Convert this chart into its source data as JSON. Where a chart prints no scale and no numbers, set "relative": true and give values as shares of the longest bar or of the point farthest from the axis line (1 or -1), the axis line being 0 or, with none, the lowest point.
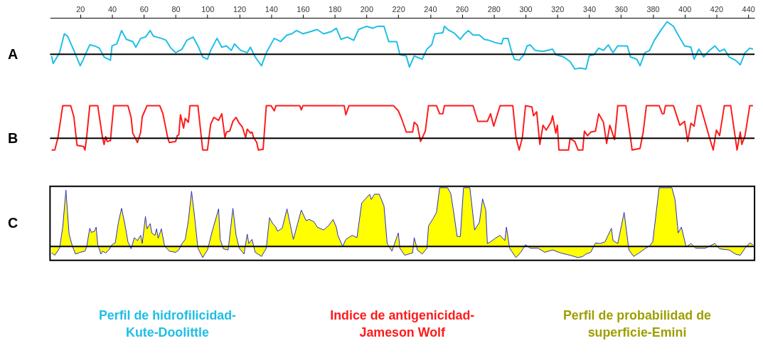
{
  "chart_data": [
    {
      "type": "line",
      "title": "A",
      "relative": true,
      "tick_labels": "x",
      "xlim": [
        1,
        444
      ],
      "xticks": [
        20,
        40,
        60,
        80,
        100,
        120,
        140,
        160,
        180,
        200,
        220,
        240,
        260,
        280,
        300,
        320,
        340,
        360,
        380,
        400,
        420,
        440
      ],
      "annotations": [
        "Perfil de hidrofilicidad-\nKute-Doolittle"
      ],
      "series": [
        {
          "color": "#1ebfe6",
          "x": [
            2,
            3,
            7,
            10,
            12,
            16,
            20,
            22,
            25,
            26,
            29,
            32,
            35,
            39,
            40,
            43,
            46,
            49,
            53,
            55,
            58,
            61,
            64,
            66,
            71,
            74,
            77,
            80,
            84,
            87,
            91,
            94,
            97,
            100,
            102,
            106,
            109,
            112,
            115,
            117,
            121,
            125,
            127,
            130,
            134,
            137,
            142,
            146,
            150,
            153,
            156,
            160,
            165,
            169,
            173,
            178,
            181,
            184,
            188,
            192,
            195,
            200,
            204,
            207,
            211,
            214,
            219,
            221,
            225,
            227,
            230,
            235,
            238,
            241,
            243,
            248,
            249,
            252,
            255,
            259,
            261,
            264,
            267,
            271,
            274,
            277,
            281,
            285,
            286,
            289,
            291,
            293,
            296,
            299,
            301,
            303,
            306,
            311,
            317,
            319,
            324,
            328,
            331,
            334,
            338,
            340,
            343,
            346,
            349,
            352,
            355,
            358,
            362,
            364,
            366,
            370,
            372,
            375,
            378,
            381,
            385,
            389,
            393,
            396,
            400,
            404,
            406,
            409,
            412,
            415,
            419,
            422,
            425,
            428,
            432,
            435,
            438,
            441,
            443
          ],
          "values": [
            -0.05,
            -0.28,
            0.05,
            0.63,
            0.56,
            0.12,
            -0.35,
            -0.15,
            0.19,
            0.29,
            0.26,
            0.19,
            -0.08,
            -0.18,
            0.26,
            0.32,
            0.73,
            0.46,
            0.39,
            0.22,
            0.49,
            0.53,
            0.73,
            0.56,
            0.49,
            0.43,
            0.19,
            0.05,
            0.16,
            0.43,
            0.53,
            0.26,
            -0.08,
            -0.15,
            0.12,
            0.49,
            0.22,
            0.26,
            0.12,
            0.32,
            0.12,
            0.05,
            0.22,
            -0.08,
            -0.35,
            0.05,
            0.49,
            0.39,
            0.59,
            0.63,
            0.73,
            0.63,
            0.7,
            0.76,
            0.63,
            0.7,
            0.8,
            0.46,
            0.53,
            0.43,
            0.76,
            0.86,
            0.8,
            0.86,
            0.86,
            0.39,
            0.39,
            -0.01,
            -0.05,
            -0.39,
            -0.05,
            -0.15,
            0.16,
            0.29,
            0.63,
            0.66,
            0.86,
            0.73,
            0.66,
            0.46,
            0.59,
            0.73,
            0.59,
            0.59,
            0.46,
            0.43,
            0.36,
            0.32,
            0.49,
            0.49,
            0.12,
            -0.15,
            -0.18,
            -0.01,
            0.26,
            0.29,
            0.12,
            0.09,
            0.16,
            -0.01,
            -0.08,
            -0.22,
            -0.45,
            -0.42,
            -0.45,
            -0.05,
            -0.01,
            0.19,
            0.12,
            0.29,
            0.05,
            0.26,
            0.26,
            0.26,
            -0.08,
            -0.15,
            -0.35,
            0.05,
            0.12,
            0.43,
            0.73,
            1.0,
            0.86,
            0.59,
            0.26,
            0.22,
            -0.15,
            0.16,
            -0.08,
            0.09,
            0.26,
            0.09,
            0.16,
            -0.08,
            -0.18,
            -0.32,
            0.05,
            0.19,
            0.16
          ]
        }
      ]
    },
    {
      "type": "line",
      "title": "B",
      "relative": true,
      "tick_labels": false,
      "xlim": [
        1,
        444
      ],
      "annotations": [
        "Indice de antigenicidad-\nJameson Wolf"
      ],
      "series": [
        {
          "color": "#ff1a1a",
          "x": [
            2,
            4,
            6,
            9,
            14,
            16,
            18,
            22,
            23,
            24,
            26,
            31,
            34,
            35,
            36,
            37,
            39,
            41,
            50,
            52,
            53,
            56,
            58,
            59,
            62,
            70,
            72,
            75,
            76,
            80,
            81,
            82,
            83,
            85,
            86,
            88,
            89,
            94,
            97,
            100,
            102,
            104,
            107,
            109,
            111,
            112,
            114,
            116,
            118,
            120,
            122,
            124,
            125,
            127,
            128,
            129,
            131,
            132,
            135,
            137,
            140,
            142,
            143,
            158,
            159,
            160,
            186,
            187,
            189,
            217,
            220,
            222,
            225,
            229,
            230,
            232,
            234,
            237,
            239,
            244,
            246,
            248,
            249,
            267,
            270,
            276,
            278,
            280,
            284,
            292,
            294,
            296,
            298,
            300,
            304,
            305,
            307,
            309,
            311,
            313,
            316,
            317,
            319,
            320,
            321,
            327,
            328,
            331,
            333,
            336,
            337,
            339,
            341,
            344,
            346,
            349,
            351,
            353,
            356,
            358,
            363,
            366,
            367,
            372,
            374,
            376,
            384,
            386,
            387,
            388,
            393,
            397,
            400,
            402,
            404,
            406,
            408,
            410,
            415,
            418,
            420,
            422,
            425,
            429,
            433,
            435,
            436,
            438,
            441,
            443
          ],
          "values": [
            -0.36,
            -0.36,
            0.02,
            1,
            1,
            0.66,
            -0.22,
            -0.25,
            -0.36,
            0.02,
            1,
            1,
            0.02,
            -0.19,
            0.05,
            -0.1,
            -0.07,
            1,
            1,
            0.64,
            0.16,
            -0.13,
            0.19,
            0.66,
            1,
            1,
            0.75,
            0.02,
            -0.13,
            -0.1,
            0.08,
            0.11,
            0.72,
            0.31,
            0.61,
            0.49,
            1,
            1,
            -0.36,
            -0.36,
            0.43,
            0.64,
            0.55,
            0.75,
            0.02,
            0.19,
            0.22,
            0.52,
            0.64,
            0.46,
            0.34,
            0.02,
            0.28,
            0.16,
            0.19,
            0.02,
            -0.13,
            -0.36,
            -0.34,
            1,
            1,
            0.84,
            1,
            1,
            0.87,
            1,
            1,
            0.72,
            1,
            1,
            0.84,
            0.61,
            0.19,
            0.19,
            0.49,
            0.4,
            -0.1,
            0.22,
            1,
            1,
            0.75,
            0.75,
            1,
            1,
            0.52,
            0.52,
            0.75,
            0.37,
            1,
            1,
            0.02,
            -0.36,
            0.02,
            1,
            0.96,
            0.69,
            0.81,
            -0.19,
            0.4,
            0.25,
            0.49,
            0.69,
            0.16,
            0.4,
            -0.36,
            -0.36,
            -0.01,
            -0.1,
            -0.36,
            -0.36,
            0.22,
            0.08,
            0.19,
            0.22,
            0.75,
            0.49,
            -0.16,
            0.4,
            -0.04,
            1,
            1,
            0.02,
            -0.36,
            -0.31,
            0.19,
            1,
            1,
            0.75,
            0.75,
            1,
            1,
            0.4,
            0.52,
            -0.1,
            0.46,
            0.37,
            1,
            1,
            0.13,
            -0.36,
            0.25,
            0.08,
            1,
            1,
            -0.36,
            0.19,
            -0.19,
            0.08,
            1,
            1
          ]
        }
      ]
    },
    {
      "type": "area",
      "title": "C",
      "relative": true,
      "tick_labels": false,
      "xlim": [
        1,
        444
      ],
      "annotations": [
        "Perfil de probabilidad de\nsuperficie-Emini"
      ],
      "series": [
        {
          "color": "#ffff00",
          "x": [
            2,
            4,
            7,
            9,
            11,
            12,
            13,
            15,
            17,
            20,
            23,
            24,
            26,
            27,
            29,
            30,
            31,
            33,
            34,
            36,
            38,
            40,
            42,
            44,
            46,
            48,
            50,
            52,
            54,
            56,
            58,
            59,
            61,
            62,
            64,
            65,
            67,
            68,
            69,
            71,
            73,
            76,
            80,
            82,
            84,
            86,
            88,
            90,
            92,
            94,
            97,
            100,
            103,
            107,
            108,
            110,
            113,
            116,
            118,
            120,
            123,
            125,
            126,
            128,
            130,
            134,
            137,
            139,
            141,
            143,
            144,
            147,
            150,
            154,
            159,
            162,
            164,
            167,
            169,
            173,
            176,
            179,
            181,
            182,
            185,
            187,
            191,
            194,
            197,
            200,
            202,
            203,
            205,
            208,
            211,
            213,
            216,
            220,
            221,
            224,
            229,
            230,
            232,
            235,
            238,
            239,
            242,
            244,
            246,
            251,
            253,
            255,
            257,
            259,
            261,
            265,
            268,
            271,
            273,
            275,
            276,
            278,
            281,
            284,
            287,
            288,
            290,
            294,
            297,
            300,
            303,
            308,
            312,
            317,
            322,
            328,
            333,
            336,
            338,
            341,
            344,
            347,
            350,
            354,
            355,
            358,
            362,
            365,
            368,
            372,
            375,
            378,
            380,
            384,
            392,
            394,
            396,
            398,
            401,
            404,
            407,
            413,
            419,
            422,
            428,
            432,
            435,
            438,
            441,
            443
          ],
          "values": [
            -0.11,
            -0.15,
            -0.03,
            0.33,
            0.96,
            0.58,
            0.21,
            0.01,
            -0.13,
            -0.1,
            -0.08,
            -0.01,
            0.31,
            0.24,
            0.26,
            0.33,
            0.03,
            -0.13,
            -0.08,
            -0.11,
            -0.06,
            0.03,
            0.06,
            0.41,
            0.65,
            0.39,
            0.08,
            -0.04,
            0.15,
            0.1,
            0.19,
            0.05,
            0.51,
            0.3,
            0.39,
            0.23,
            0.19,
            0.3,
            0.14,
            0.3,
            0.01,
            -0.08,
            -0.1,
            -0.06,
            0.05,
            0.12,
            0.44,
            0.94,
            0.48,
            -0.03,
            -0.19,
            -0.06,
            0.26,
            0.64,
            0.12,
            -0.04,
            -0.06,
            0.65,
            0.19,
            -0.03,
            -0.13,
            0.21,
            0.05,
            0.12,
            -0.1,
            -0.17,
            -0.03,
            0.49,
            0.39,
            0.33,
            0.26,
            0.31,
            0.64,
            0.12,
            0.62,
            0.44,
            0.46,
            0.42,
            0.33,
            0.28,
            0.35,
            0.46,
            0.33,
            0.19,
            0.0,
            0.12,
            0.19,
            0.15,
            0.74,
            0.83,
            0.89,
            0.8,
            0.89,
            0.89,
            0.69,
            0.05,
            -0.08,
            0.23,
            -0.03,
            -0.15,
            -0.11,
            0.15,
            -0.06,
            -0.13,
            -0.03,
            0.35,
            0.48,
            0.58,
            1,
            1,
            0.9,
            0.55,
            0.17,
            0.17,
            1,
            1,
            0.28,
            0.41,
            0.81,
            0.62,
            0.05,
            0.08,
            0.14,
            0.19,
            0.1,
            0.33,
            -0.03,
            -0.19,
            -0.1,
            0.03,
            -0.03,
            -0.03,
            -0.1,
            -0.06,
            -0.11,
            -0.15,
            -0.19,
            -0.17,
            -0.13,
            -0.1,
            0.06,
            0.05,
            0.08,
            0.31,
            0.1,
            0.05,
            0.58,
            -0.06,
            -0.17,
            -0.1,
            -0.04,
            0.01,
            0.08,
            1,
            1,
            0.8,
            0.23,
            0.33,
            -0.01,
            0.05,
            -0.03,
            -0.03,
            0.05,
            -0.04,
            -0.06,
            -0.13,
            -0.15,
            -0.03,
            0.06,
            0.03
          ]
        }
      ]
    }
  ]
}
